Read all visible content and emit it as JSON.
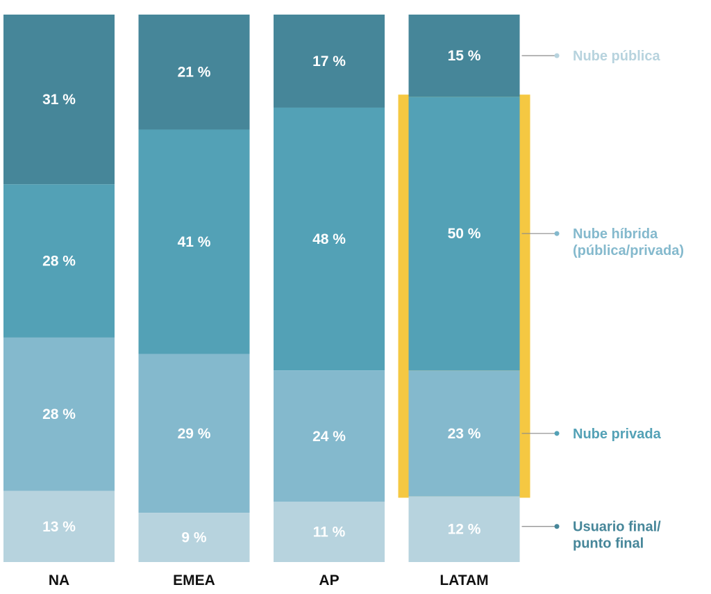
{
  "chart_data": {
    "type": "bar",
    "stacked": true,
    "normalized_percent": true,
    "categories": [
      "NA",
      "EMEA",
      "AP",
      "LATAM"
    ],
    "series": [
      {
        "name": "Nube pública",
        "values": [
          31,
          21,
          17,
          15
        ],
        "labels": [
          "31 %",
          "21 %",
          "17 %",
          "15 %"
        ],
        "color": "#468699"
      },
      {
        "name": "Nube híbrida (pública/privada)",
        "values": [
          28,
          41,
          48,
          50
        ],
        "labels": [
          "28 %",
          "41 %",
          "48 %",
          "50 %"
        ],
        "color": "#53a1b6"
      },
      {
        "name": "Nube privada",
        "values": [
          28,
          29,
          24,
          23
        ],
        "labels": [
          "28 %",
          "29 %",
          "24 %",
          "23 %"
        ],
        "color": "#84b9cd"
      },
      {
        "name": "Usuario final/ punto final",
        "values": [
          13,
          9,
          11,
          12
        ],
        "labels": [
          "13 %",
          "9 %",
          "11 %",
          "12 %"
        ],
        "color": "#b7d3de"
      }
    ],
    "legend": [
      {
        "lines": [
          "Nube pública"
        ],
        "color": "#b7d3de"
      },
      {
        "lines": [
          "Nube híbrida",
          "(pública/privada)"
        ],
        "color": "#84b9cd"
      },
      {
        "lines": [
          "Nube privada"
        ],
        "color": "#53a1b6"
      },
      {
        "lines": [
          "Usuario final/",
          "punto final"
        ],
        "color": "#468699"
      }
    ],
    "highlight": {
      "category": "LATAM",
      "series": [
        "Nube híbrida (pública/privada)",
        "Nube privada"
      ],
      "color": "#f5c842"
    },
    "title": "",
    "xlabel": "",
    "ylabel": "",
    "ylim": [
      0,
      100
    ]
  }
}
